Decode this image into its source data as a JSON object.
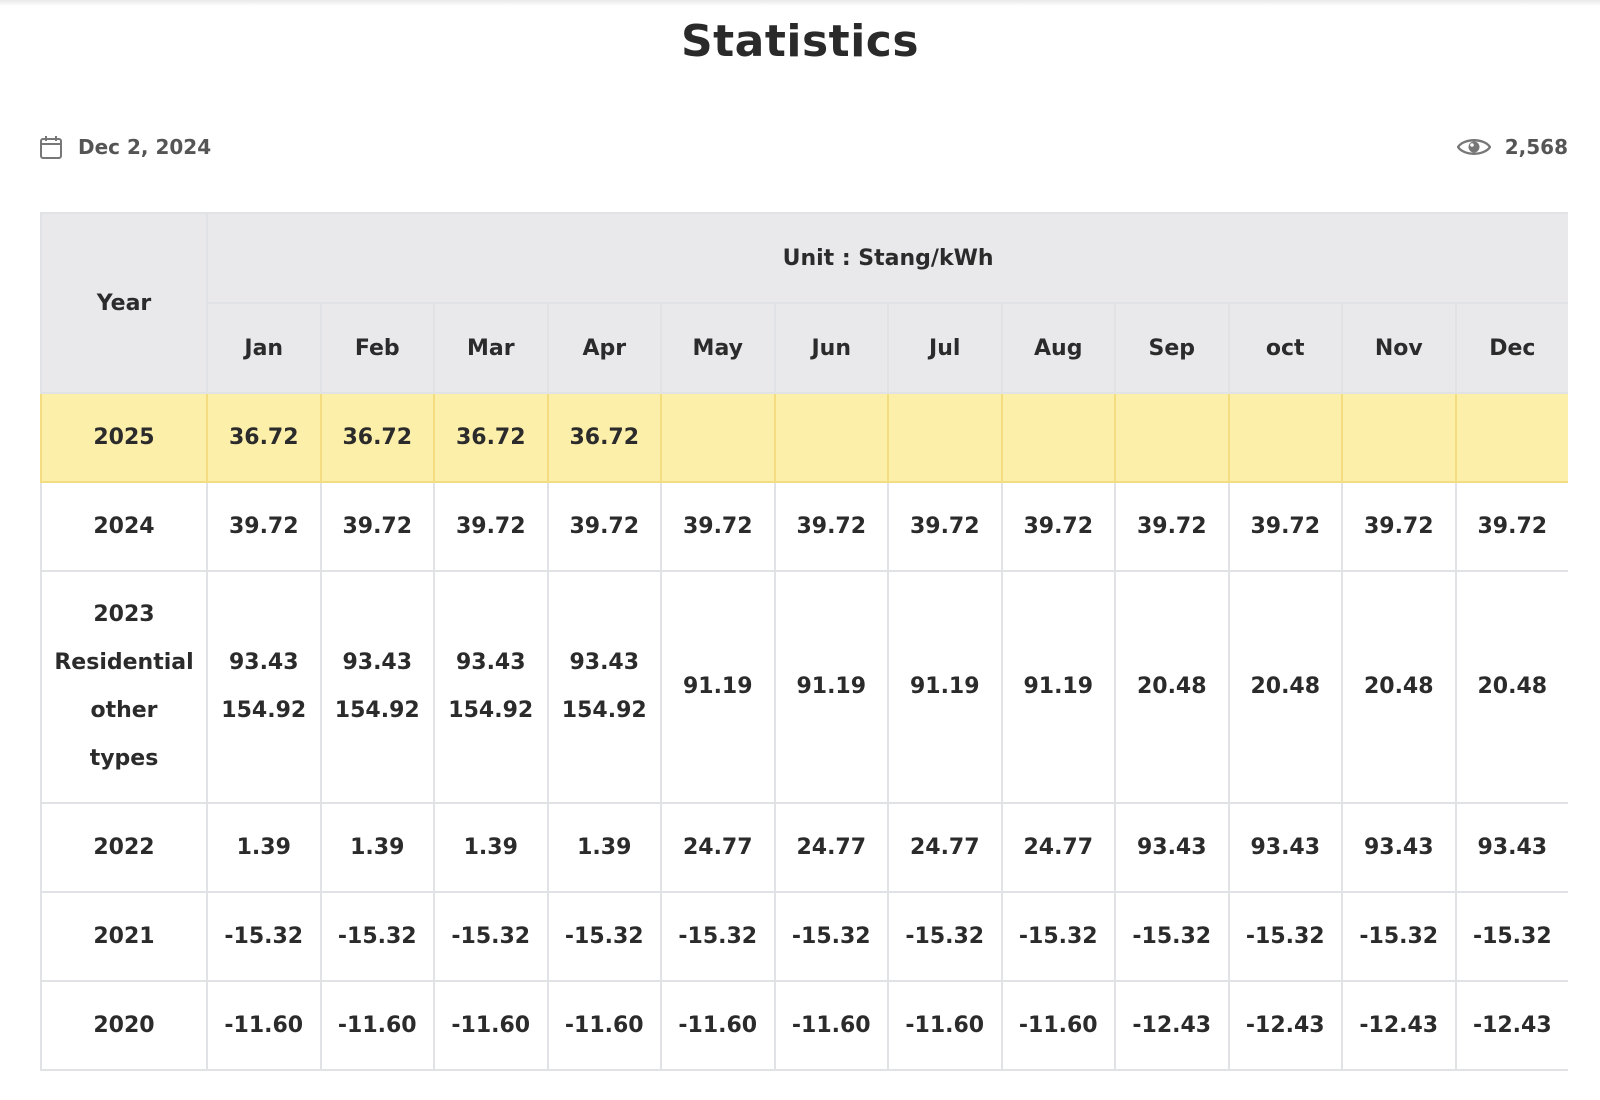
{
  "page": {
    "title": "Statistics",
    "date": "Dec 2, 2024",
    "views": "2,568",
    "icons": {
      "calendar": "calendar-icon",
      "views": "eye-icon"
    }
  },
  "table": {
    "year_header": "Year",
    "unit_header": "Unit : Stang/kWh",
    "months": [
      "Jan",
      "Feb",
      "Mar",
      "Apr",
      "May",
      "Jun",
      "Jul",
      "Aug",
      "Sep",
      "oct",
      "Nov",
      "Dec"
    ],
    "rows": [
      {
        "year_lines": [
          "2025"
        ],
        "highlight": true,
        "cells": [
          [
            "36.72"
          ],
          [
            "36.72"
          ],
          [
            "36.72"
          ],
          [
            "36.72"
          ],
          [
            ""
          ],
          [
            ""
          ],
          [
            ""
          ],
          [
            ""
          ],
          [
            ""
          ],
          [
            ""
          ],
          [
            ""
          ],
          [
            ""
          ]
        ]
      },
      {
        "year_lines": [
          "2024"
        ],
        "highlight": false,
        "cells": [
          [
            "39.72"
          ],
          [
            "39.72"
          ],
          [
            "39.72"
          ],
          [
            "39.72"
          ],
          [
            "39.72"
          ],
          [
            "39.72"
          ],
          [
            "39.72"
          ],
          [
            "39.72"
          ],
          [
            "39.72"
          ],
          [
            "39.72"
          ],
          [
            "39.72"
          ],
          [
            "39.72"
          ]
        ]
      },
      {
        "year_lines": [
          "2023",
          "Residential",
          "other",
          "types"
        ],
        "highlight": false,
        "cells": [
          [
            "93.43",
            "154.92"
          ],
          [
            "93.43",
            "154.92"
          ],
          [
            "93.43",
            "154.92"
          ],
          [
            "93.43",
            "154.92"
          ],
          [
            "91.19"
          ],
          [
            "91.19"
          ],
          [
            "91.19"
          ],
          [
            "91.19"
          ],
          [
            "20.48"
          ],
          [
            "20.48"
          ],
          [
            "20.48"
          ],
          [
            "20.48"
          ]
        ]
      },
      {
        "year_lines": [
          "2022"
        ],
        "highlight": false,
        "cells": [
          [
            "1.39"
          ],
          [
            "1.39"
          ],
          [
            "1.39"
          ],
          [
            "1.39"
          ],
          [
            "24.77"
          ],
          [
            "24.77"
          ],
          [
            "24.77"
          ],
          [
            "24.77"
          ],
          [
            "93.43"
          ],
          [
            "93.43"
          ],
          [
            "93.43"
          ],
          [
            "93.43"
          ]
        ]
      },
      {
        "year_lines": [
          "2021"
        ],
        "highlight": false,
        "cells": [
          [
            "-15.32"
          ],
          [
            "-15.32"
          ],
          [
            "-15.32"
          ],
          [
            "-15.32"
          ],
          [
            "-15.32"
          ],
          [
            "-15.32"
          ],
          [
            "-15.32"
          ],
          [
            "-15.32"
          ],
          [
            "-15.32"
          ],
          [
            "-15.32"
          ],
          [
            "-15.32"
          ],
          [
            "-15.32"
          ]
        ]
      },
      {
        "year_lines": [
          "2020"
        ],
        "highlight": false,
        "cells": [
          [
            "-11.60"
          ],
          [
            "-11.60"
          ],
          [
            "-11.60"
          ],
          [
            "-11.60"
          ],
          [
            "-11.60"
          ],
          [
            "-11.60"
          ],
          [
            "-11.60"
          ],
          [
            "-11.60"
          ],
          [
            "-12.43"
          ],
          [
            "-12.43"
          ],
          [
            "-12.43"
          ],
          [
            "-12.43"
          ]
        ]
      }
    ]
  },
  "colors": {
    "header_bg": "#e9e9ec",
    "highlight_bg": "#fcefaa",
    "border": "#e1e2e6"
  }
}
